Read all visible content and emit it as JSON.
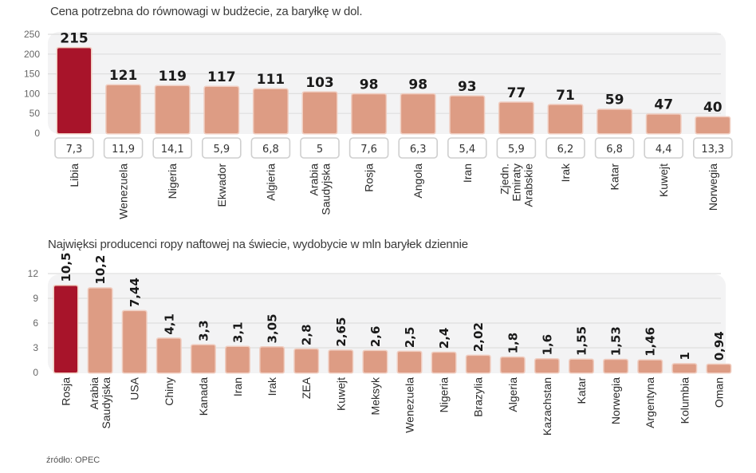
{
  "colors": {
    "highlight": "#a8142a",
    "bar": "#dd9c84",
    "bar_edge": "#f0cdc0",
    "panel": "#f3f3f4",
    "grid": "#dedede"
  },
  "source": "źródło: OPEC",
  "chart_data": [
    {
      "type": "bar",
      "title": "Cena potrzebna do równowagi w budżecie, za baryłkę w dol.",
      "xlabel": "",
      "ylabel": "",
      "ylim": [
        0,
        250
      ],
      "yticks": [
        0,
        50,
        100,
        150,
        200,
        250
      ],
      "grid": true,
      "categories": [
        "Libia",
        "Wenezuela",
        "Nigeria",
        "Ekwador",
        "Algieria",
        "Arabia Saudyjska",
        "Rosja",
        "Angola",
        "Iran",
        "Zjedn. Emiraty Arabskie",
        "Irak",
        "Katar",
        "Kuwejt",
        "Norwegia"
      ],
      "category_lines": [
        [
          "Libia"
        ],
        [
          "Wenezuela"
        ],
        [
          "Nigeria"
        ],
        [
          "Ekwador"
        ],
        [
          "Algieria"
        ],
        [
          "Arabia",
          "Saudyjska"
        ],
        [
          "Rosja"
        ],
        [
          "Angola"
        ],
        [
          "Iran"
        ],
        [
          "Zjedn.",
          "Emiraty",
          "Arabskie"
        ],
        [
          "Irak"
        ],
        [
          "Katar"
        ],
        [
          "Kuwejt"
        ],
        [
          "Norwegia"
        ]
      ],
      "values": [
        215,
        121,
        119,
        117,
        111,
        103,
        98,
        98,
        93,
        77,
        71,
        59,
        47,
        40
      ],
      "value_labels": [
        "215",
        "121",
        "119",
        "117",
        "111",
        "103",
        "98",
        "98",
        "93",
        "77",
        "71",
        "59",
        "47",
        "40"
      ],
      "secondary_values": [
        7.3,
        11.9,
        14.1,
        5.9,
        6.8,
        5,
        7.6,
        6.3,
        5.4,
        5.9,
        6.2,
        6.8,
        4.4,
        13.3
      ],
      "secondary_labels": [
        "7,3",
        "11,9",
        "14,1",
        "5,9",
        "6,8",
        "5",
        "7,6",
        "6,3",
        "5,4",
        "5,9",
        "6,2",
        "6,8",
        "4,4",
        "13,3"
      ],
      "highlight_index": 0
    },
    {
      "type": "bar",
      "title": "Najwięksi producenci ropy naftowej na świecie, wydobycie w mln baryłek dziennie",
      "xlabel": "",
      "ylabel": "",
      "ylim": [
        0,
        12
      ],
      "yticks": [
        0,
        3,
        6,
        9,
        12
      ],
      "grid": true,
      "categories": [
        "Rosja",
        "Arabia Saudyjska",
        "USA",
        "Chiny",
        "Kanada",
        "Iran",
        "Irak",
        "ZEA",
        "Kuwejt",
        "Meksyk",
        "Wenezuela",
        "Nigeria",
        "Brazylia",
        "Algeria",
        "Kazachstan",
        "Katar",
        "Norwegia",
        "Argentyna",
        "Kolumbia",
        "Oman"
      ],
      "category_lines": [
        [
          "Rosja"
        ],
        [
          "Arabia",
          "Saudyjska"
        ],
        [
          "USA"
        ],
        [
          "Chiny"
        ],
        [
          "Kanada"
        ],
        [
          "Iran"
        ],
        [
          "Irak"
        ],
        [
          "ZEA"
        ],
        [
          "Kuwejt"
        ],
        [
          "Meksyk"
        ],
        [
          "Wenezuela"
        ],
        [
          "Nigeria"
        ],
        [
          "Brazylia"
        ],
        [
          "Algeria"
        ],
        [
          "Kazachstan"
        ],
        [
          "Katar"
        ],
        [
          "Norwegia"
        ],
        [
          "Argentyna"
        ],
        [
          "Kolumbia"
        ],
        [
          "Oman"
        ]
      ],
      "values": [
        10.5,
        10.2,
        7.44,
        4.1,
        3.3,
        3.1,
        3.05,
        2.8,
        2.65,
        2.6,
        2.5,
        2.4,
        2.02,
        1.8,
        1.6,
        1.55,
        1.53,
        1.46,
        1,
        0.94
      ],
      "value_labels": [
        "10,5",
        "10,2",
        "7,44",
        "4,1",
        "3,3",
        "3,1",
        "3,05",
        "2,8",
        "2,65",
        "2,6",
        "2,5",
        "2,4",
        "2,02",
        "1,8",
        "1,6",
        "1,55",
        "1,53",
        "1,46",
        "1",
        "0,94"
      ],
      "highlight_index": 0
    }
  ]
}
